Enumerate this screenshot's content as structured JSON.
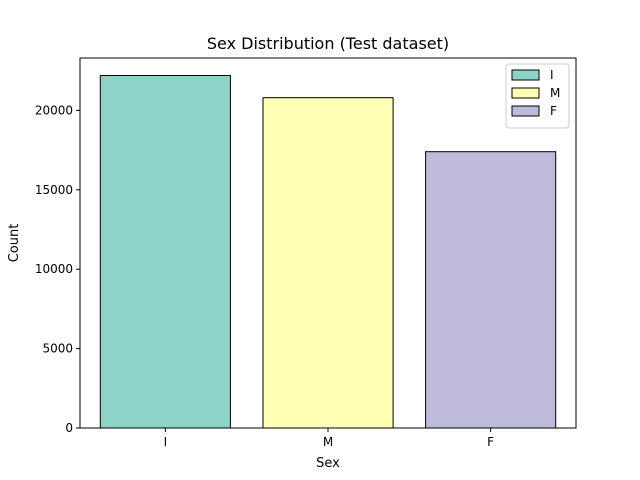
{
  "chart_data": {
    "type": "bar",
    "title": "Sex Distribution (Test dataset)",
    "xlabel": "Sex",
    "ylabel": "Count",
    "categories": [
      "I",
      "M",
      "F"
    ],
    "values": [
      22200,
      20800,
      17400
    ],
    "colors": [
      "#8dd3c7",
      "#ffffb3",
      "#bebada"
    ],
    "ylim": [
      0,
      23300
    ],
    "yticks": [
      0,
      5000,
      10000,
      15000,
      20000
    ],
    "ytick_labels": [
      "0",
      "5000",
      "10000",
      "15000",
      "20000"
    ],
    "grid": false,
    "legend": {
      "position": "top-right",
      "entries": [
        "I",
        "M",
        "F"
      ]
    }
  }
}
